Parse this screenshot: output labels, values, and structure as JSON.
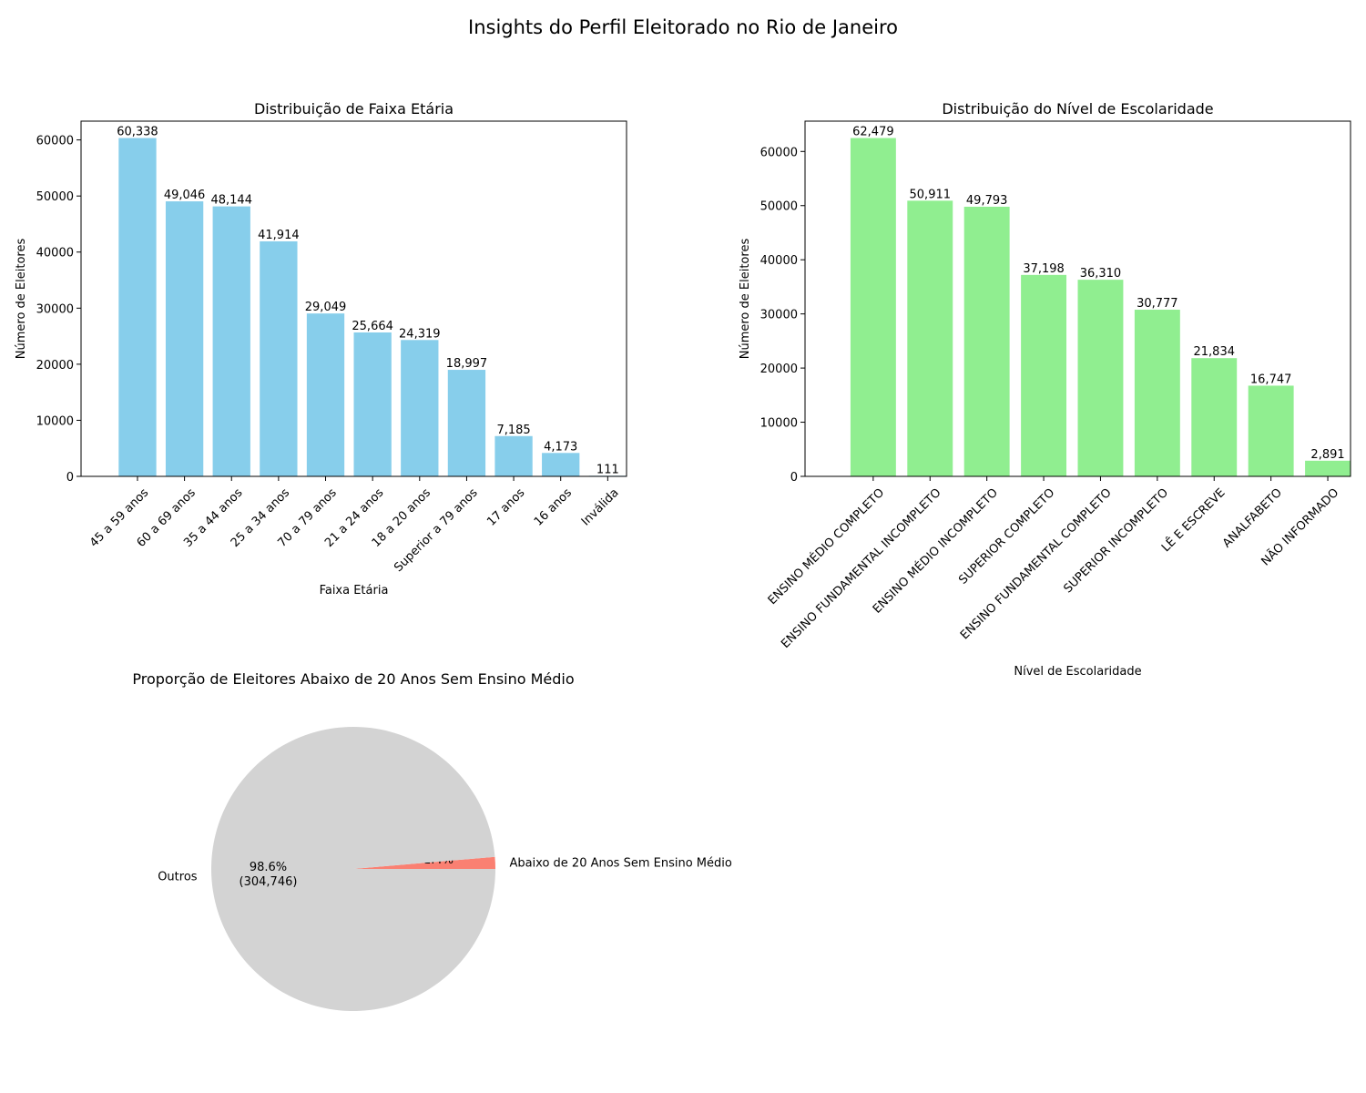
{
  "title": "Insights do Perfil Eleitorado no Rio de Janeiro",
  "chart_data": [
    {
      "type": "bar",
      "title": "Distribuição de Faixa Etária",
      "xlabel": "Faixa Etária",
      "ylabel": "Número de Eleitores",
      "ylim": [
        0,
        63350
      ],
      "yticks": [
        0,
        10000,
        20000,
        30000,
        40000,
        50000,
        60000
      ],
      "color": "#87ceeb",
      "categories": [
        "45 a 59 anos",
        "60 a 69 anos",
        "35 a 44 anos",
        "25 a 34 anos",
        "70 a 79 anos",
        "21 a 24 anos",
        "18 a 20 anos",
        "Superior a 79 anos",
        "17 anos",
        "16 anos",
        "Inválida"
      ],
      "values": [
        60338,
        49046,
        48144,
        41914,
        29049,
        25664,
        24319,
        18997,
        7185,
        4173,
        111
      ],
      "value_labels": [
        "60,338",
        "49,046",
        "48,144",
        "41,914",
        "29,049",
        "25,664",
        "24,319",
        "18,997",
        "7,185",
        "4,173",
        "111"
      ]
    },
    {
      "type": "bar",
      "title": "Distribuição do Nível de Escolaridade",
      "xlabel": "Nível de Escolaridade",
      "ylabel": "Número de Eleitores",
      "ylim": [
        0,
        65600
      ],
      "yticks": [
        0,
        10000,
        20000,
        30000,
        40000,
        50000,
        60000
      ],
      "color": "#90ee90",
      "categories": [
        "ENSINO MÉDIO COMPLETO",
        "ENSINO FUNDAMENTAL INCOMPLETO",
        "ENSINO MÉDIO INCOMPLETO",
        "SUPERIOR COMPLETO",
        "ENSINO FUNDAMENTAL COMPLETO",
        "SUPERIOR INCOMPLETO",
        "LÊ E ESCREVE",
        "ANALFABETO",
        "NÃO INFORMADO"
      ],
      "values": [
        62479,
        50911,
        49793,
        37198,
        36310,
        30777,
        21834,
        16747,
        2891
      ],
      "value_labels": [
        "62,479",
        "50,911",
        "49,793",
        "37,198",
        "36,310",
        "30,777",
        "21,834",
        "16,747",
        "2,891"
      ]
    },
    {
      "type": "pie",
      "title": "Proporção de Eleitores Abaixo de 20 Anos Sem Ensino Médio",
      "slices": [
        {
          "label": "Abaixo de 20 Anos Sem Ensino Médio",
          "value": 4193,
          "pct_label": "1.4%",
          "count_label": "(4,193)",
          "color": "#fa8072"
        },
        {
          "label": "Outros",
          "value": 304746,
          "pct_label": "98.6%",
          "count_label": "(304,746)",
          "color": "#d3d3d3"
        }
      ]
    }
  ]
}
